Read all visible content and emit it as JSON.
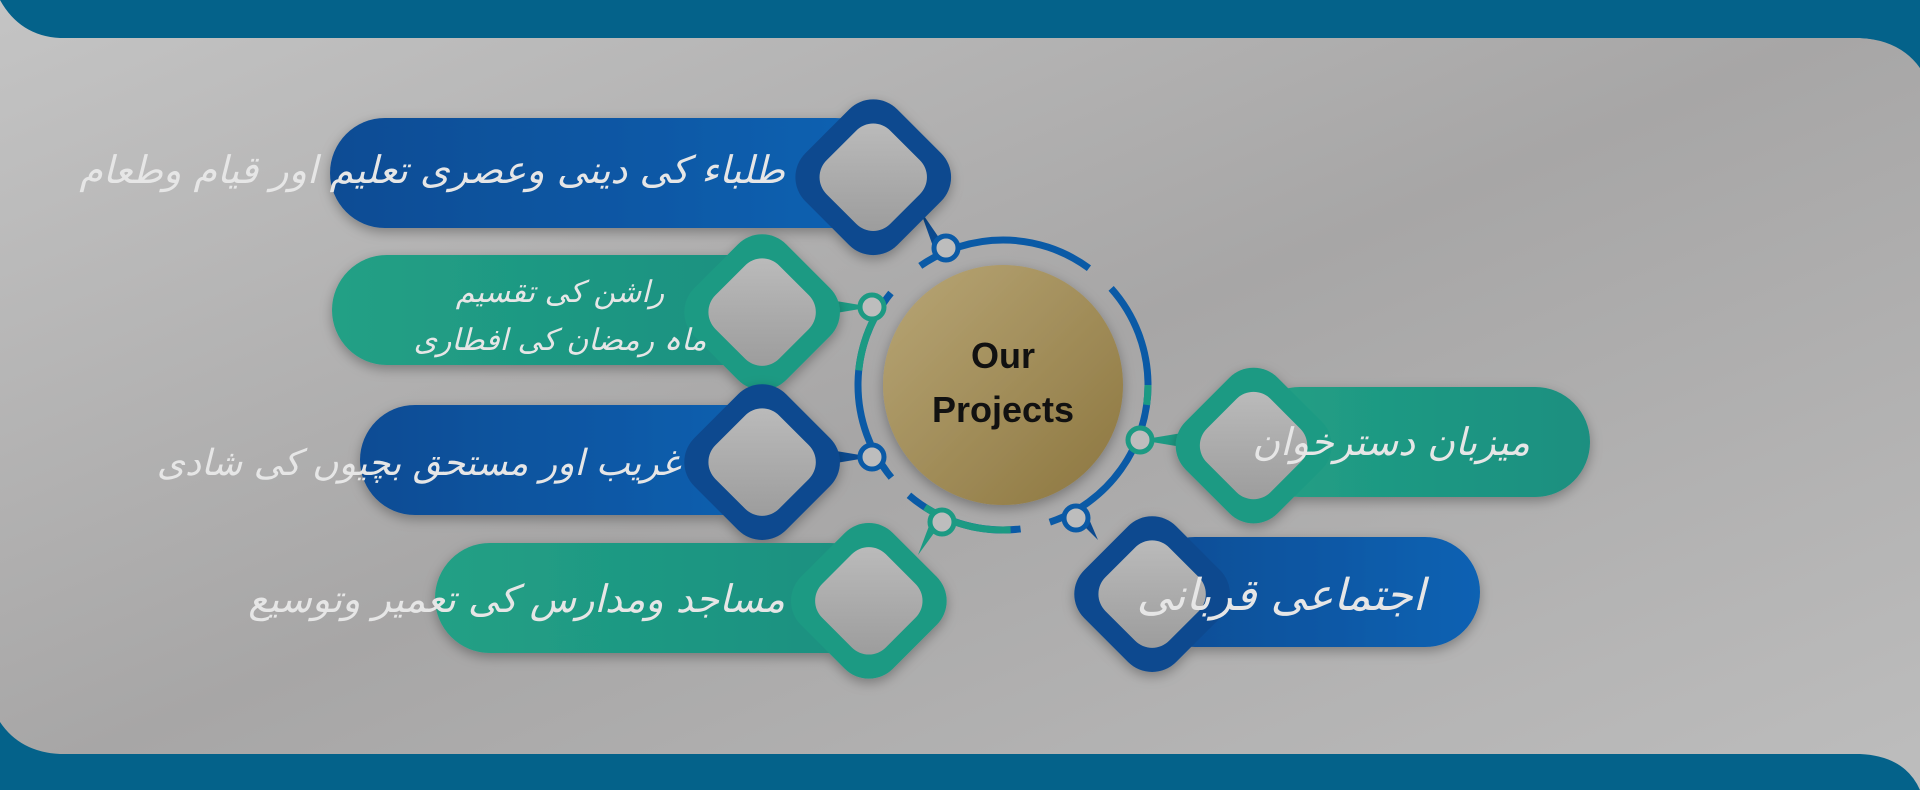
{
  "center": {
    "title_line1": "Our",
    "title_line2": "Projects"
  },
  "projects": [
    {
      "label": "طلباء کی دینی وعصری تعلیم اور قیام وطعام",
      "color": "blue"
    },
    {
      "label_line1": "راشن کی تقسیم",
      "label_line2": "ماہ رمضان کی افطاری",
      "color": "teal"
    },
    {
      "label": "غریب اور مستحق بچیوں کی شادی",
      "color": "blue"
    },
    {
      "label": "مساجد ومدارس کی تعمیر وتوسیع",
      "color": "teal"
    },
    {
      "label": "میزبان دسترخوان",
      "color": "teal"
    },
    {
      "label": "اجتماعی قربانی",
      "color": "blue"
    }
  ],
  "colors": {
    "frame": "#04628a",
    "blue": "#0a5aa6",
    "blue_dark": "#0b4a8f",
    "teal": "#1c9a83",
    "gold": "#a8925c",
    "background": "#a9a9a9"
  }
}
